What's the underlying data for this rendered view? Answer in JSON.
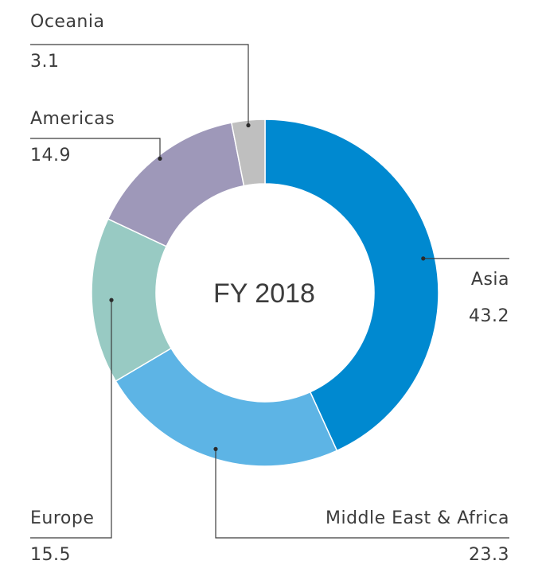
{
  "chart_data": {
    "type": "pie",
    "variant": "donut",
    "center_label": "FY 2018",
    "categories": [
      "Asia",
      "Middle East & Africa",
      "Europe",
      "Americas",
      "Oceania"
    ],
    "values": [
      43.2,
      23.3,
      15.5,
      14.9,
      3.1
    ],
    "labels": [
      "43.2",
      "23.3",
      "15.5",
      "14.9",
      "3.1"
    ],
    "colors": [
      "#0089d0",
      "#5db4e5",
      "#98cac3",
      "#9e98b9",
      "#bfbfbf"
    ],
    "legend": "callout labels"
  }
}
